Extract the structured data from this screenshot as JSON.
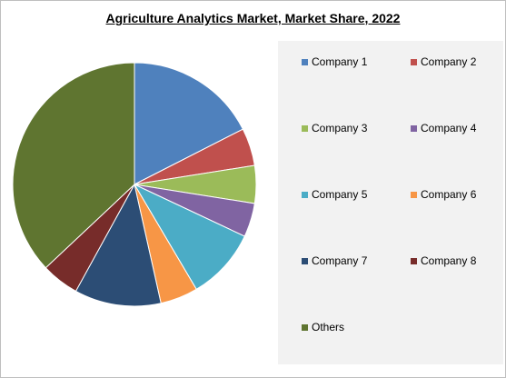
{
  "chart_data": {
    "type": "pie",
    "title": "Agriculture Analytics Market, Market Share, 2022",
    "legend_position": "right",
    "series": [
      {
        "name": "Company 1",
        "value": 17.5,
        "color": "#4f81bd"
      },
      {
        "name": "Company 2",
        "value": 5,
        "color": "#c0504d"
      },
      {
        "name": "Company 3",
        "value": 5,
        "color": "#9bbb59"
      },
      {
        "name": "Company 4",
        "value": 4.5,
        "color": "#8064a2"
      },
      {
        "name": "Company 5",
        "value": 9.5,
        "color": "#4bacc6"
      },
      {
        "name": "Company 6",
        "value": 5,
        "color": "#f79646"
      },
      {
        "name": "Company 7",
        "value": 11.5,
        "color": "#2c4d75"
      },
      {
        "name": "Company 8",
        "value": 5,
        "color": "#772c2a"
      },
      {
        "name": "Others",
        "value": 37,
        "color": "#5f7530"
      }
    ]
  }
}
